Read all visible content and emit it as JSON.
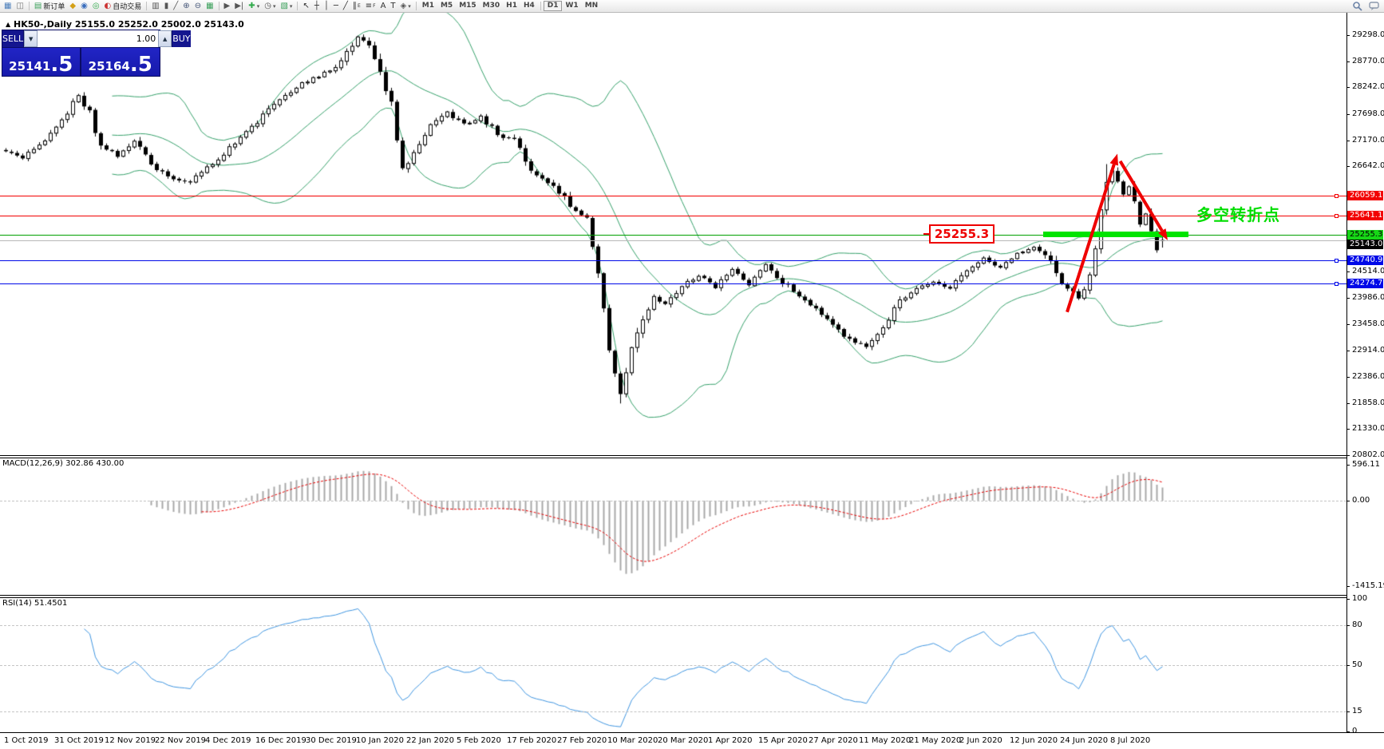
{
  "toolbar": {
    "groups": [
      {
        "items": [
          {
            "name": "chart-window-icon",
            "glyph": "▦",
            "color": "#4a7ebb"
          },
          {
            "name": "chart-profiles-icon",
            "glyph": "◫",
            "color": "#777777"
          }
        ]
      },
      {
        "items": [
          {
            "name": "new-order-button",
            "glyph": "▤",
            "color": "#3aa05a",
            "label": "新订单"
          },
          {
            "name": "metaeditor-icon",
            "glyph": "◆",
            "color": "#d4a017"
          },
          {
            "name": "community-icon",
            "glyph": "◉",
            "color": "#3a6ebd"
          },
          {
            "name": "signals-icon",
            "glyph": "◎",
            "color": "#2faa4a"
          },
          {
            "name": "autotrade-button",
            "glyph": "◐",
            "color": "#cc3333",
            "label": "自动交易"
          }
        ]
      },
      {
        "items": [
          {
            "name": "bars-chart-icon",
            "glyph": "▥",
            "color": "#555555"
          },
          {
            "name": "candles-chart-icon",
            "glyph": "▮",
            "color": "#555555"
          },
          {
            "name": "line-chart-icon",
            "glyph": "╱",
            "color": "#555555"
          },
          {
            "name": "zoom-in-icon",
            "glyph": "⊕",
            "color": "#445577"
          },
          {
            "name": "zoom-out-icon",
            "glyph": "⊖",
            "color": "#445577"
          },
          {
            "name": "tile-windows-icon",
            "glyph": "▦",
            "color": "#3aa05a"
          }
        ]
      },
      {
        "items": [
          {
            "name": "auto-scroll-icon",
            "glyph": "▶",
            "color": "#555555"
          },
          {
            "name": "shift-chart-icon",
            "glyph": "▶|",
            "color": "#555555"
          },
          {
            "name": "indicators-button",
            "glyph": "✚",
            "color": "#2faa4a",
            "caret": true
          },
          {
            "name": "period-button",
            "glyph": "◷",
            "color": "#555555",
            "caret": true
          },
          {
            "name": "template-button",
            "glyph": "▧",
            "color": "#3aa05a",
            "caret": true
          }
        ]
      },
      {
        "items": [
          {
            "name": "cursor-icon",
            "glyph": "↖",
            "color": "#333333"
          },
          {
            "name": "crosshair-icon",
            "glyph": "┼",
            "color": "#333333"
          },
          {
            "name": "vline-icon",
            "glyph": "│",
            "color": "#333333"
          },
          {
            "name": "hline-icon",
            "glyph": "─",
            "color": "#333333"
          },
          {
            "name": "trendline-icon",
            "glyph": "╱",
            "color": "#333333"
          },
          {
            "name": "channel-icon",
            "glyph": "∥",
            "color": "#333333",
            "sub": "E"
          },
          {
            "name": "fibo-icon",
            "glyph": "≡",
            "color": "#333333",
            "sub": "F"
          },
          {
            "name": "text-icon",
            "glyph": "A",
            "color": "#333333"
          },
          {
            "name": "label-icon",
            "glyph": "T",
            "color": "#333333"
          },
          {
            "name": "shapes-button",
            "glyph": "◈",
            "color": "#555555",
            "caret": true
          }
        ]
      }
    ],
    "timeframes": {
      "options": [
        "M1",
        "M5",
        "M15",
        "M30",
        "H1",
        "H4",
        "D1",
        "W1",
        "MN"
      ],
      "active": "D1",
      "separator_before": "D1"
    }
  },
  "chart_header": {
    "marker": "▲",
    "symbol_title": "HK50-,Daily",
    "ohlc": "25155.0 25252.0 25002.0 25143.0"
  },
  "trade_panel": {
    "sell_label": "SELL",
    "buy_label": "BUY",
    "volume": "1.00",
    "sell_price_main": "25141",
    "sell_price_frac": ".5",
    "buy_price_main": "25164",
    "buy_price_frac": ".5"
  },
  "annotations": {
    "support_price_label": "25255.3",
    "turning_point_text": "多空转折点"
  },
  "indicators": {
    "macd": {
      "name": "MACD(12,26,9)",
      "value_main": "302.86",
      "value_signal": "430.00",
      "axis": [
        596.11,
        0.0,
        -1415.19
      ]
    },
    "rsi": {
      "name": "RSI(14)",
      "value": "51.4501",
      "axis": [
        100,
        80,
        50,
        15,
        0
      ],
      "grid_levels": [
        80,
        50,
        15
      ]
    }
  },
  "time_axis": {
    "labels": [
      "1 Oct 2019",
      "31 Oct 2019",
      "12 Nov 2019",
      "22 Nov 2019",
      "4 Dec 2019",
      "16 Dec 2019",
      "30 Dec 2019",
      "10 Jan 2020",
      "22 Jan 2020",
      "5 Feb 2020",
      "17 Feb 2020",
      "27 Feb 2020",
      "10 Mar 2020",
      "20 Mar 2020",
      "1 Apr 2020",
      "15 Apr 2020",
      "27 Apr 2020",
      "11 May 2020",
      "21 May 2020",
      "2 Jun 2020",
      "12 Jun 2020",
      "24 Jun 2020",
      "8 Jul 2020"
    ]
  },
  "chart_data": {
    "type": "candlestick",
    "symbol": "HK50",
    "timeframe": "Daily",
    "ohlc_current": {
      "open": 25155.0,
      "high": 25252.0,
      "low": 25002.0,
      "close": 25143.0
    },
    "bid": 25141.5,
    "ask": 25164.5,
    "bars_count": 208,
    "price_axis_range": [
      20802,
      29766
    ],
    "price_ticks": [
      29298.0,
      28770.0,
      28242.0,
      27698.0,
      27170.0,
      26642.0,
      24514.0,
      23986.0,
      23458.0,
      22914.0,
      22386.0,
      21858.0,
      21330.0,
      20802.0
    ],
    "tagged_prices": [
      {
        "value": 26059.1,
        "bg": "#f20000",
        "fg": "#ffffff"
      },
      {
        "value": 25641.1,
        "bg": "#f20000",
        "fg": "#ffffff"
      },
      {
        "value": 25255.3,
        "bg": "#16d616",
        "fg": "#000000"
      },
      {
        "value": 25143.0,
        "bg": "#000000",
        "fg": "#ffffff"
      },
      {
        "value": 24740.9,
        "bg": "#0009e8",
        "fg": "#ffffff"
      },
      {
        "value": 24274.7,
        "bg": "#0009e8",
        "fg": "#ffffff"
      }
    ],
    "horizontal_lines": [
      {
        "name": "resistance-line-26059",
        "price": 26059.1,
        "color": "#f20000",
        "handle": true
      },
      {
        "name": "resistance-line-25641",
        "price": 25641.1,
        "color": "#f20000",
        "handle": true
      },
      {
        "name": "support-line-25255",
        "price": 25255.3,
        "color": "#00a000",
        "handle": false
      },
      {
        "name": "bid-price-line",
        "price": 25143.0,
        "color": "#b8b8b8",
        "handle": false
      },
      {
        "name": "support-line-24740",
        "price": 24740.9,
        "color": "#0009e8",
        "handle": true
      },
      {
        "name": "support-line-24274",
        "price": 24274.7,
        "color": "#0009e8",
        "handle": true
      }
    ],
    "highlight_bar": {
      "price": 25255.3,
      "from_bar": 186,
      "to_bar": 212,
      "color": "#00e400"
    },
    "arrows": [
      {
        "direction": "up",
        "from_bar": 190,
        "from_price": 23700,
        "to_bar": 199,
        "to_price": 26900,
        "color": "#ee0000"
      },
      {
        "direction": "down",
        "from_bar": 199.5,
        "from_price": 26750,
        "to_bar": 208,
        "to_price": 25150,
        "color": "#ee0000"
      }
    ],
    "bollinger": {
      "period": 20,
      "deviation": 2,
      "color": "#35a06a"
    },
    "macd_params": {
      "fast": 12,
      "slow": 26,
      "signal": 9,
      "current_macd": 302.86,
      "current_signal": 430.0,
      "axis_max": 596.11,
      "axis_min": -1415.19
    },
    "rsi_params": {
      "period": 14,
      "current": 51.4501
    },
    "price_path": [
      [
        0,
        26950
      ],
      [
        3,
        26820
      ],
      [
        7,
        27200
      ],
      [
        10,
        27600
      ],
      [
        13,
        28060
      ],
      [
        15,
        27700
      ],
      [
        17,
        27100
      ],
      [
        20,
        26820
      ],
      [
        23,
        27150
      ],
      [
        26,
        26700
      ],
      [
        29,
        26420
      ],
      [
        33,
        26320
      ],
      [
        36,
        26600
      ],
      [
        40,
        27000
      ],
      [
        44,
        27420
      ],
      [
        48,
        27900
      ],
      [
        52,
        28260
      ],
      [
        56,
        28460
      ],
      [
        60,
        28750
      ],
      [
        63,
        29230
      ],
      [
        65,
        29120
      ],
      [
        67,
        28600
      ],
      [
        69,
        27900
      ],
      [
        71,
        26560
      ],
      [
        73,
        26900
      ],
      [
        76,
        27450
      ],
      [
        79,
        27730
      ],
      [
        82,
        27500
      ],
      [
        85,
        27650
      ],
      [
        88,
        27300
      ],
      [
        91,
        27150
      ],
      [
        94,
        26600
      ],
      [
        97,
        26300
      ],
      [
        100,
        26050
      ],
      [
        102,
        25700
      ],
      [
        104,
        25650
      ],
      [
        106,
        24500
      ],
      [
        108,
        22900
      ],
      [
        110,
        22050
      ],
      [
        112,
        22900
      ],
      [
        114,
        23600
      ],
      [
        116,
        24000
      ],
      [
        118,
        23850
      ],
      [
        121,
        24250
      ],
      [
        124,
        24420
      ],
      [
        127,
        24200
      ],
      [
        130,
        24550
      ],
      [
        133,
        24250
      ],
      [
        136,
        24650
      ],
      [
        139,
        24300
      ],
      [
        142,
        24050
      ],
      [
        145,
        23750
      ],
      [
        148,
        23400
      ],
      [
        151,
        23150
      ],
      [
        154,
        23000
      ],
      [
        157,
        23400
      ],
      [
        160,
        23900
      ],
      [
        163,
        24150
      ],
      [
        166,
        24300
      ],
      [
        169,
        24200
      ],
      [
        172,
        24550
      ],
      [
        175,
        24800
      ],
      [
        178,
        24600
      ],
      [
        181,
        24850
      ],
      [
        184,
        25000
      ],
      [
        186,
        24900
      ],
      [
        189,
        24300
      ],
      [
        192,
        24000
      ],
      [
        194,
        24400
      ],
      [
        195,
        24900
      ],
      [
        196,
        25700
      ],
      [
        197,
        26400
      ],
      [
        198,
        26550
      ],
      [
        199,
        26300
      ],
      [
        200,
        26100
      ],
      [
        201,
        26250
      ],
      [
        202,
        25900
      ],
      [
        203,
        25500
      ],
      [
        204,
        25700
      ],
      [
        205,
        25350
      ],
      [
        206,
        24950
      ],
      [
        207,
        25143
      ]
    ]
  }
}
